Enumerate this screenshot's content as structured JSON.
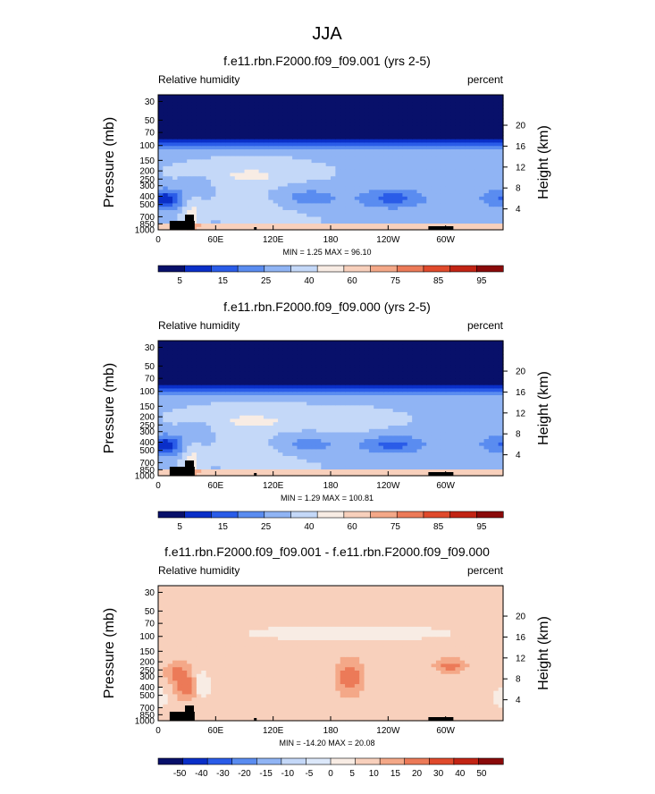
{
  "season": "JJA",
  "colors": {
    "abs": [
      "#08106a",
      "#0a2fc8",
      "#2a5ce8",
      "#5a8cf0",
      "#90b4f4",
      "#c4d8f8",
      "#f8ece4",
      "#f8d0bc",
      "#f4a888",
      "#ec7a58",
      "#e04a2c",
      "#c22414",
      "#8a0a0a"
    ],
    "diff": [
      "#08106a",
      "#0a2fc8",
      "#2a5ce8",
      "#5a8cf0",
      "#90b4f4",
      "#c4d8f8",
      "#dce8fa",
      "#f8ece4",
      "#f8d0bc",
      "#f4a888",
      "#ec7a58",
      "#e04a2c",
      "#c22414",
      "#8a0a0a"
    ],
    "land": "#000000"
  },
  "chart_data": [
    {
      "type": "heatmap",
      "title": "f.e11.rbn.F2000.f09_f09.001 (yrs 2-5)",
      "left_label": "Relative humidity",
      "right_label": "percent",
      "ylabel": "Pressure (mb)",
      "ylabel_right": "Height (km)",
      "x_ticks": [
        "0",
        "60E",
        "120E",
        "180",
        "120W",
        "60W"
      ],
      "y_ticks": [
        "1000",
        "850",
        "700",
        "500",
        "400",
        "300",
        "250",
        "200",
        "150",
        "100",
        "70",
        "50",
        "30"
      ],
      "y_ticks_right": [
        "20",
        "16",
        "12",
        "8",
        "4"
      ],
      "stats": "MIN =   1.25  MAX =  96.10",
      "colorbar_labels": [
        "5",
        "15",
        "25",
        "40",
        "60",
        "75",
        "85",
        "95"
      ],
      "min": 1.25,
      "max": 96.1
    },
    {
      "type": "heatmap",
      "title": "f.e11.rbn.F2000.f09_f09.000 (yrs 2-5)",
      "left_label": "Relative humidity",
      "right_label": "percent",
      "ylabel": "Pressure (mb)",
      "ylabel_right": "Height (km)",
      "x_ticks": [
        "0",
        "60E",
        "120E",
        "180",
        "120W",
        "60W"
      ],
      "y_ticks": [
        "1000",
        "850",
        "700",
        "500",
        "400",
        "300",
        "250",
        "200",
        "150",
        "100",
        "70",
        "50",
        "30"
      ],
      "y_ticks_right": [
        "20",
        "16",
        "12",
        "8",
        "4"
      ],
      "stats": "MIN =   1.29  MAX = 100.81",
      "colorbar_labels": [
        "5",
        "15",
        "25",
        "40",
        "60",
        "75",
        "85",
        "95"
      ],
      "min": 1.29,
      "max": 100.81
    },
    {
      "type": "heatmap",
      "title": "f.e11.rbn.F2000.f09_f09.001 - f.e11.rbn.F2000.f09_f09.000",
      "left_label": "Relative humidity",
      "right_label": "percent",
      "ylabel": "Pressure (mb)",
      "ylabel_right": "Height (km)",
      "x_ticks": [
        "0",
        "60E",
        "120E",
        "180",
        "120W",
        "60W"
      ],
      "y_ticks": [
        "1000",
        "850",
        "700",
        "500",
        "400",
        "300",
        "250",
        "200",
        "150",
        "100",
        "70",
        "50",
        "30"
      ],
      "y_ticks_right": [
        "20",
        "16",
        "12",
        "8",
        "4"
      ],
      "stats": "MIN = -14.20  MAX =  20.08",
      "colorbar_labels": [
        "-50",
        "-40",
        "-30",
        "-20",
        "-15",
        "-10",
        "-5",
        "0",
        "5",
        "10",
        "15",
        "20",
        "30",
        "40",
        "50"
      ],
      "min": -14.2,
      "max": 20.08
    }
  ]
}
